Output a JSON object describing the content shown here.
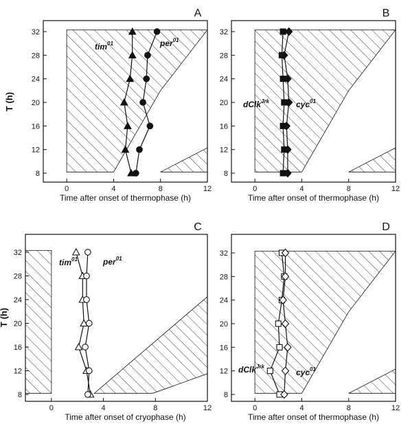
{
  "figure": {
    "y_axis_label": "T (h)"
  },
  "chart_data": [
    {
      "panel": "A",
      "type": "line",
      "xlabel": "Time after onset of thermophase (h)",
      "ylabel": "T (h)",
      "xlim": [
        -2,
        12
      ],
      "ylim": [
        7,
        33.5
      ],
      "xticks": [
        0,
        4,
        8,
        12
      ],
      "yticks": [
        8,
        12,
        16,
        20,
        24,
        28,
        32
      ],
      "y": [
        8,
        12,
        16,
        20,
        24,
        28,
        32
      ],
      "series": [
        {
          "name": "tim01",
          "label_main": "tim",
          "label_sup": "01",
          "marker": "triangle",
          "fill": "black",
          "x": [
            5.5,
            5.0,
            5.2,
            4.9,
            5.4,
            5.6,
            5.6
          ]
        },
        {
          "name": "per01",
          "label_main": "per",
          "label_sup": "01",
          "marker": "circle",
          "fill": "black",
          "x": [
            5.9,
            6.2,
            7.1,
            6.5,
            6.8,
            6.9,
            7.7
          ]
        }
      ],
      "regions": [
        {
          "kind": "polygon",
          "points": [
            [
              0,
              8.2
            ],
            [
              4,
              8.2
            ],
            [
              8,
              22
            ],
            [
              12,
              32.3
            ],
            [
              0,
              32.3
            ]
          ]
        },
        {
          "kind": "polygon",
          "points": [
            [
              8,
              8.2
            ],
            [
              12,
              8.2
            ],
            [
              12,
              12.3
            ]
          ]
        }
      ]
    },
    {
      "panel": "B",
      "type": "line",
      "xlabel": "Time after onset of thermophase (h)",
      "ylabel": "T (h)",
      "xlim": [
        -2,
        12
      ],
      "ylim": [
        7,
        33.5
      ],
      "xticks": [
        0,
        4,
        8,
        12
      ],
      "yticks": [
        8,
        12,
        16,
        20,
        24,
        28,
        32
      ],
      "y": [
        8,
        12,
        16,
        20,
        24,
        28,
        32
      ],
      "series": [
        {
          "name": "dClkJrk",
          "label_main": "dClk",
          "label_sup": "Jrk",
          "marker": "square",
          "fill": "black",
          "x": [
            2.4,
            2.5,
            2.4,
            2.5,
            2.4,
            2.3,
            2.4
          ]
        },
        {
          "name": "cyc01",
          "label_main": "cyc",
          "label_sup": "01",
          "marker": "diamond",
          "fill": "black",
          "x": [
            2.8,
            2.8,
            2.7,
            2.9,
            2.8,
            2.5,
            2.9
          ]
        }
      ],
      "regions": [
        {
          "kind": "polygon",
          "points": [
            [
              0,
              8.2
            ],
            [
              4,
              8.2
            ],
            [
              8,
              22
            ],
            [
              12,
              32.3
            ],
            [
              0,
              32.3
            ]
          ]
        },
        {
          "kind": "polygon",
          "points": [
            [
              8,
              8.2
            ],
            [
              12,
              8.2
            ],
            [
              12,
              12.3
            ]
          ]
        }
      ]
    },
    {
      "panel": "C",
      "type": "line",
      "xlabel": "Time after onset of cryophase (h)",
      "ylabel": "T (h)",
      "xlim": [
        -2,
        12
      ],
      "ylim": [
        7,
        33.5
      ],
      "xticks": [
        0,
        4,
        8,
        12
      ],
      "yticks": [
        8,
        12,
        16,
        20,
        24,
        28,
        32
      ],
      "y": [
        8,
        12,
        16,
        20,
        24,
        28,
        32
      ],
      "series": [
        {
          "name": "tim01",
          "label_main": "tim",
          "label_sup": "01",
          "marker": "triangle",
          "fill": "white",
          "x": [
            3.0,
            2.7,
            2.1,
            2.5,
            2.4,
            2.4,
            1.9
          ]
        },
        {
          "name": "per01",
          "label_main": "per",
          "label_sup": "01",
          "marker": "circle",
          "fill": "white",
          "x": [
            2.8,
            2.9,
            2.6,
            2.9,
            2.7,
            2.7,
            2.8
          ]
        }
      ],
      "regions": [
        {
          "kind": "polygon",
          "points": [
            [
              -2,
              8.2
            ],
            [
              0,
              8.2
            ],
            [
              0,
              32.3
            ],
            [
              -2,
              32.3
            ]
          ]
        },
        {
          "kind": "polygon",
          "points": [
            [
              3.3,
              8.2
            ],
            [
              7.8,
              8.2
            ],
            [
              12,
              11.5
            ],
            [
              12,
              24.5
            ]
          ]
        }
      ]
    },
    {
      "panel": "D",
      "type": "line",
      "xlabel": "Time after onset of thermophase (h)",
      "ylabel": "T (h)",
      "xlim": [
        -2,
        12
      ],
      "ylim": [
        7,
        33.5
      ],
      "xticks": [
        0,
        4,
        8,
        12
      ],
      "yticks": [
        8,
        12,
        16,
        20,
        24,
        28,
        32
      ],
      "y": [
        8,
        12,
        16,
        20,
        24,
        28,
        32
      ],
      "series": [
        {
          "name": "dClkJrk",
          "label_main": "dClk",
          "label_sup": "Jrk",
          "marker": "square",
          "fill": "white",
          "x": [
            2.1,
            1.3,
            2.1,
            2.0,
            2.3,
            2.5,
            2.3
          ]
        },
        {
          "name": "cyc01",
          "label_main": "cyc",
          "label_sup": "01",
          "marker": "diamond",
          "fill": "white",
          "x": [
            2.5,
            2.6,
            2.8,
            2.6,
            2.4,
            2.6,
            2.6
          ]
        }
      ],
      "regions": [
        {
          "kind": "polygon",
          "points": [
            [
              0,
              8.2
            ],
            [
              4,
              8.2
            ],
            [
              8,
              22
            ],
            [
              12,
              32.3
            ],
            [
              0,
              32.3
            ]
          ]
        },
        {
          "kind": "polygon",
          "points": [
            [
              8,
              8.2
            ],
            [
              12,
              8.2
            ],
            [
              12,
              12.3
            ]
          ]
        }
      ]
    }
  ]
}
